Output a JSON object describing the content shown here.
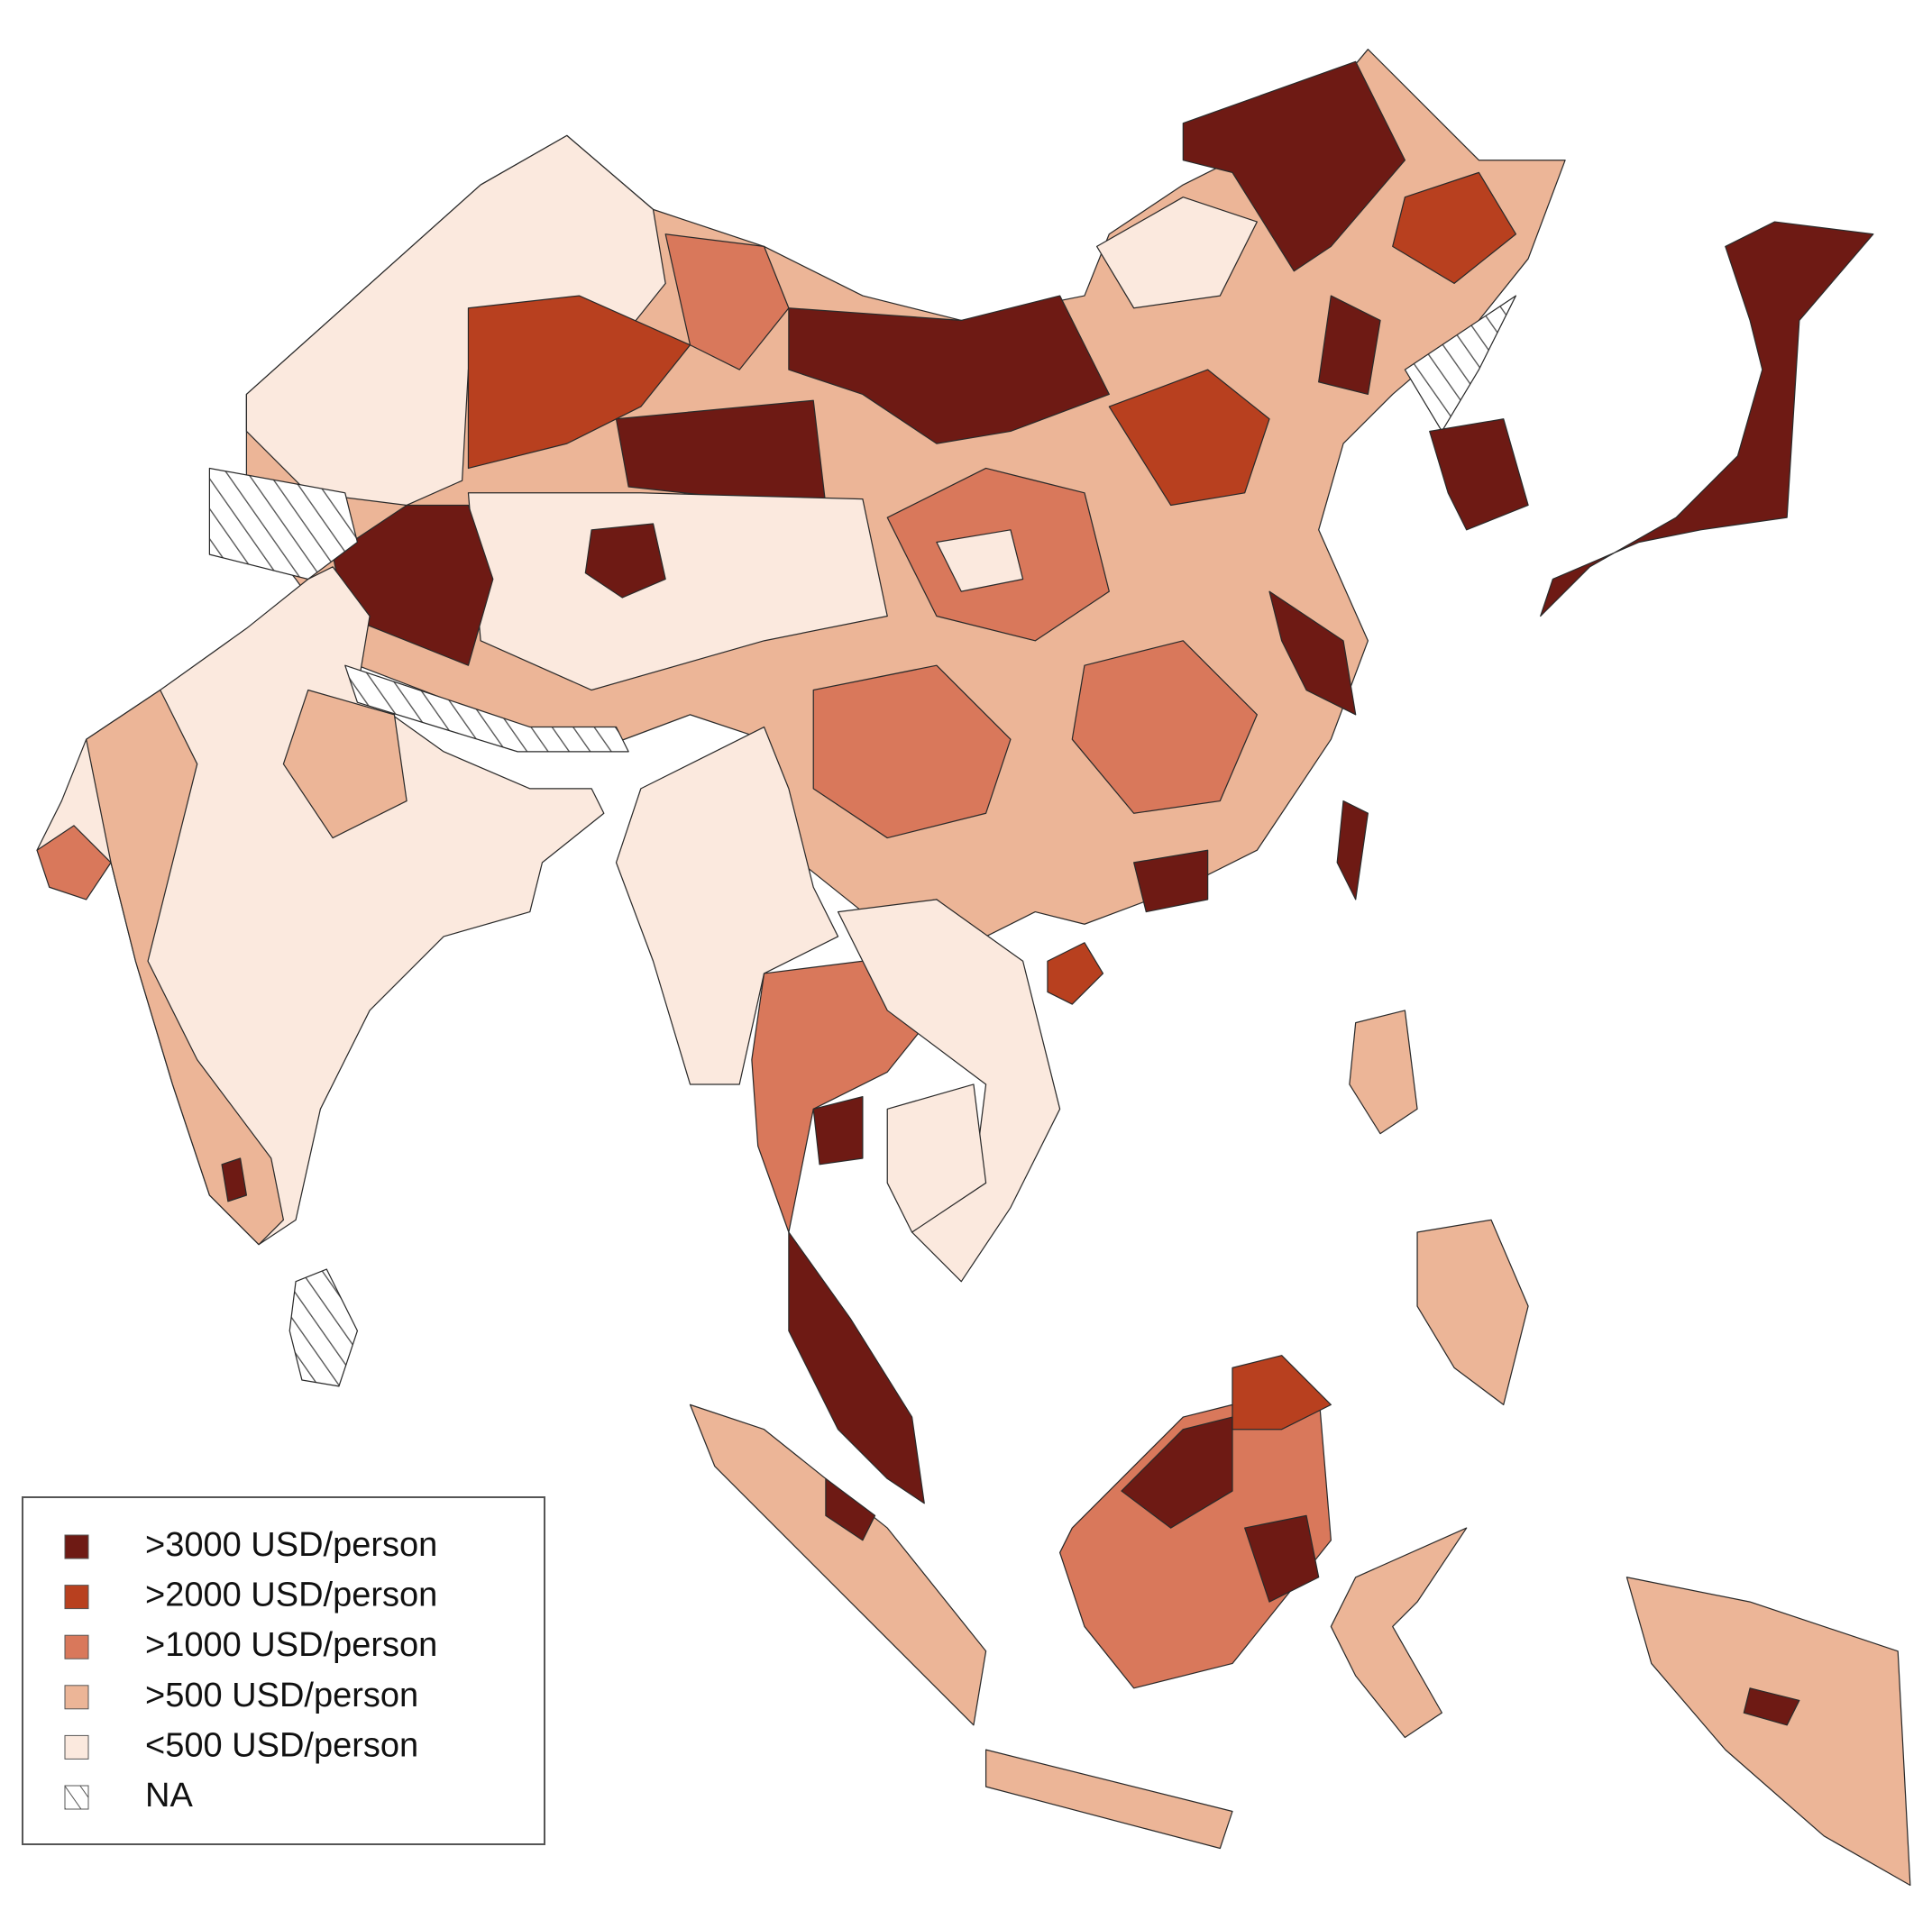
{
  "legend": {
    "items": [
      {
        "label": ">3000 USD/person",
        "color": "#6e1a14"
      },
      {
        "label": ">2000 USD/person",
        "color": "#b8401f"
      },
      {
        "label": ">1000 USD/person",
        "color": "#d9785b"
      },
      {
        "label": ">500 USD/person",
        "color": "#ecb597"
      },
      {
        "label": "<500 USD/person",
        "color": "#fbe9de"
      },
      {
        "label": "NA",
        "pattern": "hatch"
      }
    ]
  }
}
